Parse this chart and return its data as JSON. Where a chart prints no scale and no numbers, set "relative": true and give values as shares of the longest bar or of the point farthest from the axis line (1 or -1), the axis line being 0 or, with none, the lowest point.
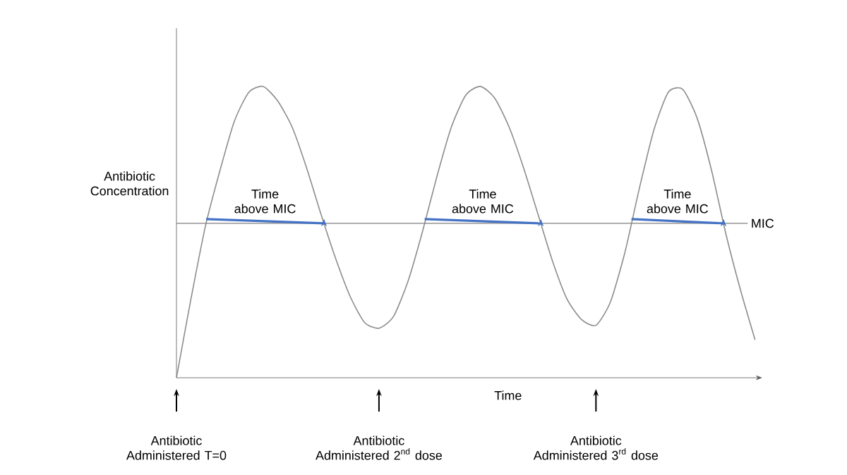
{
  "chart_data": {
    "type": "line",
    "relative": true,
    "ylabel": "Antibiotic Concentration",
    "xlabel": "Time",
    "categories": [
      null,
      null,
      null,
      null,
      null,
      null,
      null,
      null,
      null,
      null,
      null,
      null,
      null,
      null,
      null,
      null,
      null,
      null,
      null,
      null,
      null,
      null,
      null,
      null,
      null,
      null,
      null,
      null,
      null,
      null,
      null,
      null,
      null,
      null,
      null,
      null,
      null,
      null,
      null,
      null,
      null
    ],
    "series": [
      {
        "color": "#8c8c8c",
        "values": [
          0,
          0.27,
          0.52,
          0.71,
          0.88,
          0.98,
          1.0,
          0.95,
          0.86,
          0.72,
          0.56,
          0.41,
          0.28,
          0.19,
          0.17,
          0.21,
          0.33,
          0.5,
          0.69,
          0.86,
          0.97,
          1.0,
          0.96,
          0.86,
          0.72,
          0.56,
          0.4,
          0.27,
          0.2,
          0.18,
          0.26,
          0.43,
          0.65,
          0.85,
          0.98,
          0.99,
          0.89,
          0.71,
          0.49,
          0.3,
          0.13
        ]
      }
    ],
    "ref_lines": [
      {
        "axis": "y",
        "value": 0.53,
        "label": "MIC",
        "color": "#7f7f7f"
      }
    ],
    "annotations": [
      "Time above MIC",
      "Time above MIC",
      "Time above MIC",
      "Antibiotic Administered T=0",
      "Antibiotic Administered 2$^{nd}$ dose",
      "Antibiotic Administered 3$^{rd}$ dose"
    ]
  }
}
